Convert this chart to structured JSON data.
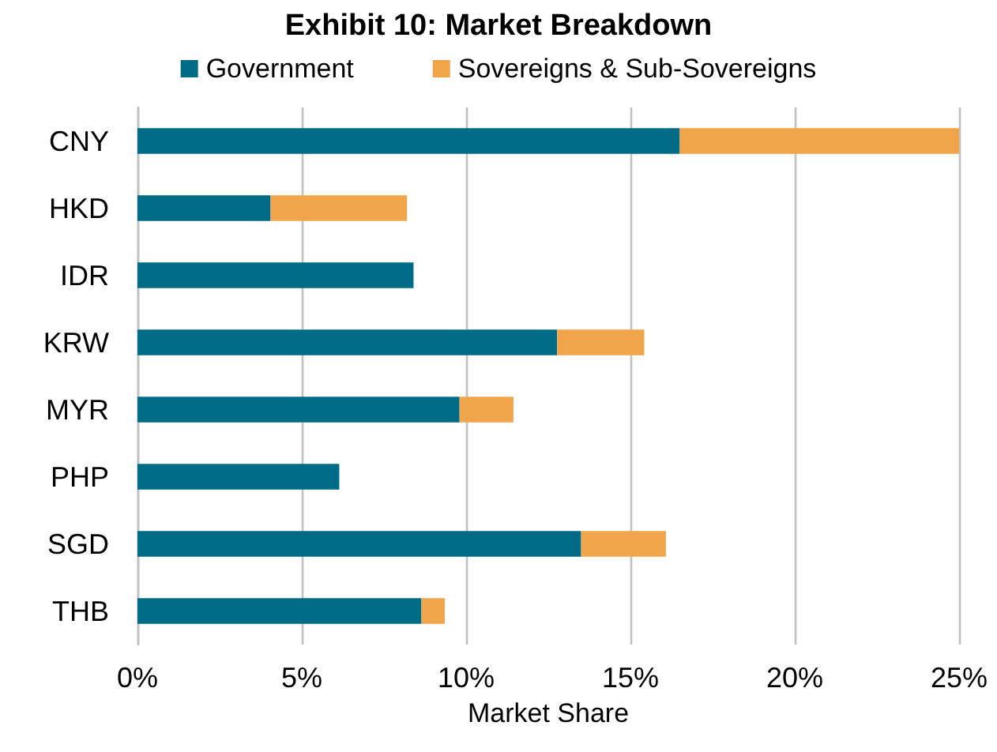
{
  "chart_data": {
    "type": "bar",
    "title": "Exhibit 10: Market Breakdown",
    "orientation": "horizontal",
    "stacked": true,
    "categories": [
      "CNY",
      "HKD",
      "IDR",
      "KRW",
      "MYR",
      "PHP",
      "SGD",
      "THB"
    ],
    "series": [
      {
        "name": "Government",
        "color": "#006b87",
        "values": [
          16.5,
          4.05,
          8.4,
          12.77,
          9.8,
          6.14,
          13.5,
          8.64
        ]
      },
      {
        "name": "Sovereigns & Sub-Sovereigns",
        "color": "#f0a54a",
        "values": [
          8.5,
          4.15,
          null,
          2.65,
          1.64,
          null,
          2.58,
          0.71
        ]
      }
    ],
    "xlabel": "Market Share",
    "xlim": [
      0,
      25
    ],
    "xticks": [
      {
        "value": 0,
        "label": "0%"
      },
      {
        "value": 5,
        "label": "5%"
      },
      {
        "value": 10,
        "label": "10%"
      },
      {
        "value": 15,
        "label": "15%"
      },
      {
        "value": 20,
        "label": "20%"
      },
      {
        "value": 25,
        "label": "25%"
      }
    ],
    "grid": "x",
    "legend": "top"
  }
}
